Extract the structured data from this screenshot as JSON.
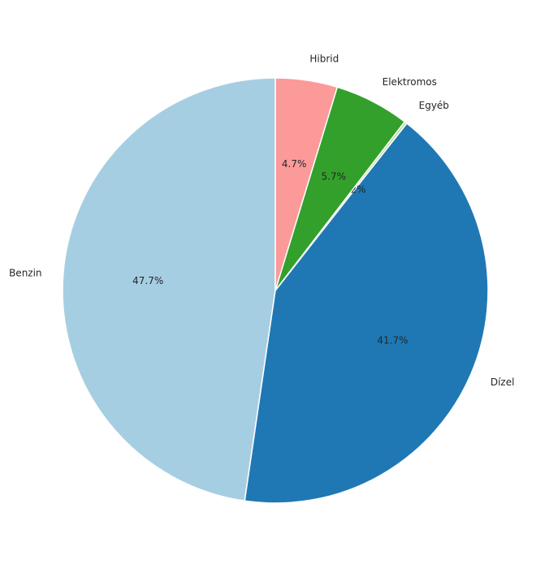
{
  "chart_data": {
    "type": "pie",
    "categories": [
      "Benzin",
      "Dízel",
      "Egyéb",
      "Elektromos",
      "Hibrid"
    ],
    "values": [
      47.7,
      41.7,
      0.2,
      5.7,
      4.7
    ],
    "value_labels": [
      "47.7%",
      "41.7%",
      "0.2%",
      "5.7%",
      "4.7%"
    ],
    "colors": [
      "#a6cee3",
      "#1f78b4",
      "#b2df8a",
      "#33a02c",
      "#fb9a99"
    ]
  }
}
